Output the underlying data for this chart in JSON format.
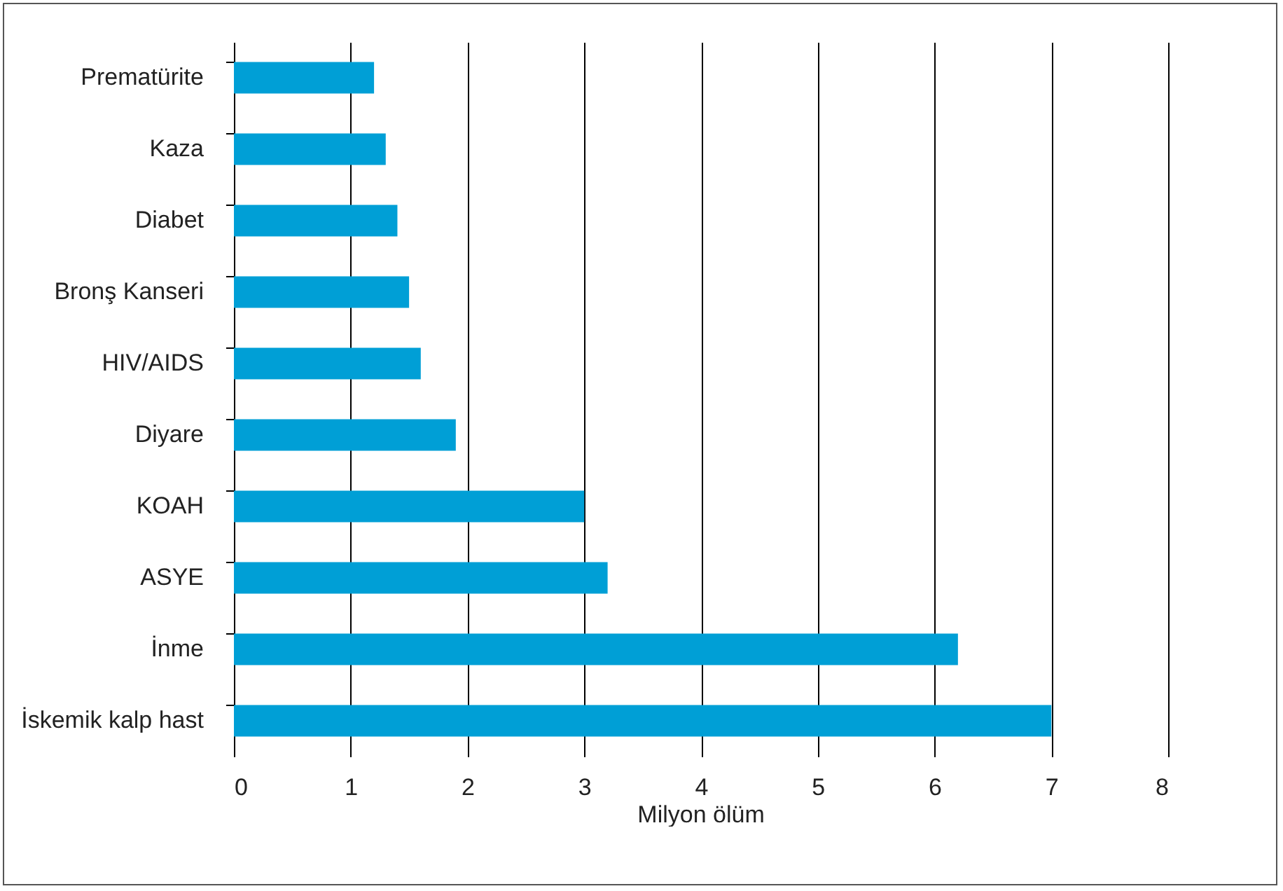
{
  "chart_data": {
    "type": "bar",
    "orientation": "horizontal",
    "xlabel": "Milyon ölüm",
    "categories": [
      "Prematürite",
      "Kaza",
      "Diabet",
      "Bronş Kanseri",
      "HIV/AIDS",
      "Diyare",
      "KOAH",
      "ASYE",
      "İnme",
      "İskemik kalp hast"
    ],
    "values": [
      1.2,
      1.3,
      1.4,
      1.5,
      1.6,
      1.9,
      3.0,
      3.2,
      6.2,
      7.0
    ],
    "color": "#009fd6",
    "xlim": [
      0,
      8
    ],
    "xticks": [
      0,
      1,
      2,
      3,
      4,
      5,
      6,
      7,
      8
    ],
    "grid": "x"
  }
}
